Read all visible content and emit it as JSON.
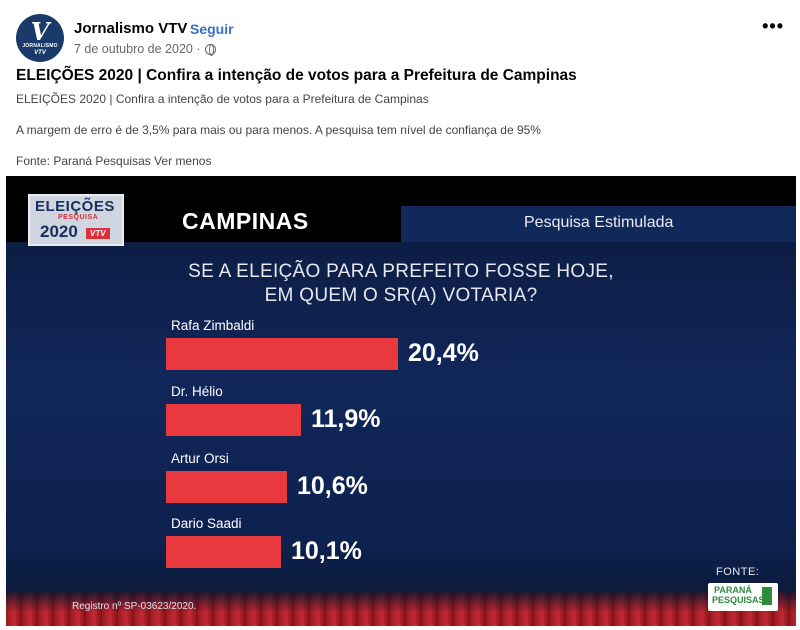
{
  "post": {
    "page_name": "Jornalismo VTV",
    "separator": "·",
    "follow_label": "Seguir",
    "date": "7 de outubro de 2020 ·",
    "avatar": {
      "letter": "V",
      "small_text": "JORNALISMO",
      "brand": "VTV"
    },
    "title": "ELEIÇÕES 2020 | Confira a intenção de votos para a Prefeitura de Campinas",
    "subtitle": "ELEIÇÕES 2020 | Confira a intenção de votos para a Prefeitura de Campinas",
    "body": "A margem de erro é de 3,5% para mais ou para menos. A pesquisa tem nível de confiança de 95%",
    "source": "Fonte: Paraná Pesquisas",
    "see_more": "Ver menos",
    "more_icon": "more-horizontal-icon"
  },
  "graphic": {
    "badge": {
      "line1": "ELEIÇÕES",
      "line2": "PESQUISA",
      "line3": "2020",
      "tag": "VTV"
    },
    "city": "CAMPINAS",
    "kind": "Pesquisa Estimulada",
    "question_line1": "SE A ELEIÇÃO PARA PREFEITO FOSSE HOJE,",
    "question_line2": "EM QUEM O SR(A) VOTARIA?",
    "registry": "Registro nº SP-03623/2020.",
    "fonte_label": "FONTE:",
    "fonte_logo_line1": "PARANÁ",
    "fonte_logo_line2": "PESQUISAS"
  },
  "chart_data": {
    "type": "bar",
    "orientation": "horizontal",
    "categories": [
      "Rafa Zimbaldi",
      "Dr. Hélio",
      "Artur Orsi",
      "Dario Saadi"
    ],
    "values": [
      20.4,
      11.9,
      10.6,
      10.1
    ],
    "value_labels": [
      "20,4%",
      "11,9%",
      "10,6%",
      "10,1%"
    ],
    "title": "",
    "bar_color": "#e8393f"
  }
}
